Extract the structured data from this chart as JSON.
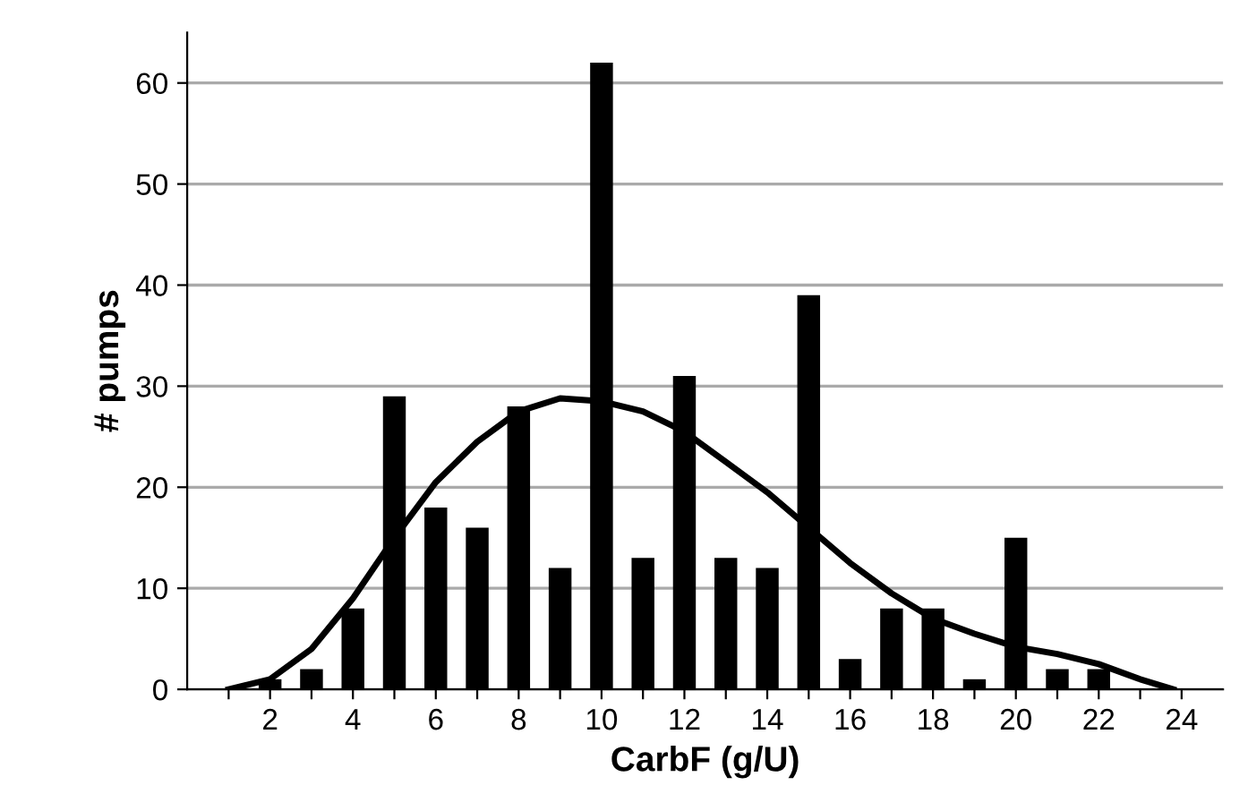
{
  "chart_data": {
    "type": "bar",
    "xlabel": "CarbF (g/U)",
    "ylabel": "# pumps",
    "x": [
      2,
      3,
      4,
      5,
      6,
      7,
      8,
      9,
      10,
      11,
      12,
      13,
      14,
      15,
      16,
      17,
      18,
      19,
      20,
      21,
      22
    ],
    "series": [
      {
        "color": "#000000",
        "values": [
          1,
          2,
          8,
          29,
          18,
          16,
          28,
          12,
          62,
          13,
          31,
          13,
          12,
          39,
          3,
          8,
          8,
          1,
          15,
          2,
          2
        ]
      },
      {
        "type": "line",
        "color": "#000000",
        "x": [
          1,
          2,
          3,
          4,
          5,
          6,
          7,
          8,
          9,
          10,
          11,
          12,
          13,
          14,
          15,
          16,
          17,
          18,
          19,
          20,
          21,
          22,
          23,
          23.8
        ],
        "values": [
          0,
          1,
          4,
          9,
          15,
          20.5,
          24.5,
          27.5,
          28.8,
          28.5,
          27.5,
          25.5,
          22.5,
          19.5,
          16,
          12.5,
          9.5,
          7,
          5.5,
          4.2,
          3.5,
          2.5,
          1,
          0
        ]
      }
    ],
    "xlim": [
      0,
      25
    ],
    "xticks": [
      {
        "value": 1,
        "label": null
      },
      2,
      {
        "value": 3,
        "label": null
      },
      4,
      {
        "value": 5,
        "label": null
      },
      6,
      {
        "value": 7,
        "label": null
      },
      8,
      {
        "value": 9,
        "label": null
      },
      10,
      {
        "value": 11,
        "label": null
      },
      12,
      {
        "value": 13,
        "label": null
      },
      14,
      {
        "value": 15,
        "label": null
      },
      16,
      {
        "value": 17,
        "label": null
      },
      18,
      {
        "value": 19,
        "label": null
      },
      20,
      {
        "value": 21,
        "label": null
      },
      22,
      {
        "value": 23,
        "label": null
      },
      24
    ],
    "ylim": [
      0,
      65
    ],
    "yticks": [
      0,
      10,
      20,
      30,
      40,
      50,
      60
    ],
    "grid": "y",
    "legend": false,
    "marker": "none",
    "line_style": "solid"
  }
}
